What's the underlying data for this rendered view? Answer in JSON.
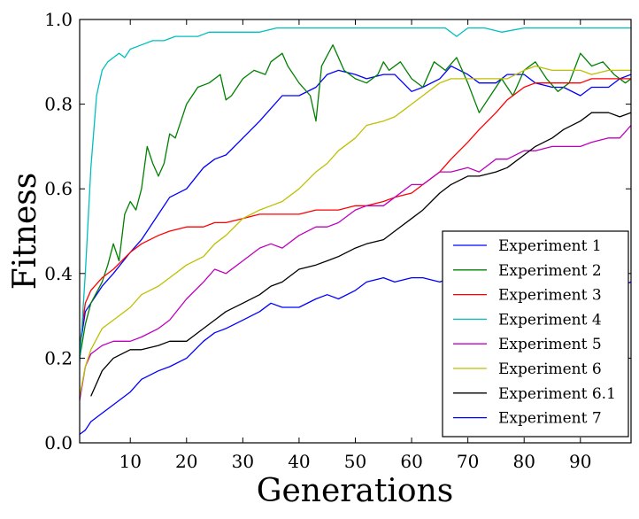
{
  "chart_data": {
    "type": "line",
    "xlabel": "Generations",
    "ylabel": "Fitness",
    "xlim": [
      1,
      99
    ],
    "ylim": [
      0.0,
      1.0
    ],
    "xticks": [
      10,
      20,
      30,
      40,
      50,
      60,
      70,
      80,
      90
    ],
    "yticks": [
      0.0,
      0.2,
      0.4,
      0.6,
      0.8,
      1.0
    ],
    "xtick_labels": [
      "10",
      "20",
      "30",
      "40",
      "50",
      "60",
      "70",
      "80",
      "90"
    ],
    "ytick_labels": [
      "0.0",
      "0.2",
      "0.4",
      "0.6",
      "0.8",
      "1.0"
    ],
    "legend_position": "lower-right",
    "grid": false,
    "series": [
      {
        "name": "Experiment 1",
        "color": "#0000ff",
        "x": [
          1,
          2,
          3,
          5,
          7,
          10,
          12,
          15,
          17,
          20,
          23,
          25,
          27,
          30,
          33,
          35,
          37,
          40,
          43,
          45,
          47,
          50,
          52,
          55,
          57,
          60,
          62,
          65,
          67,
          70,
          72,
          75,
          77,
          80,
          82,
          85,
          87,
          90,
          92,
          95,
          97,
          99
        ],
        "y": [
          0.22,
          0.31,
          0.33,
          0.37,
          0.4,
          0.45,
          0.48,
          0.54,
          0.58,
          0.6,
          0.65,
          0.67,
          0.68,
          0.72,
          0.76,
          0.79,
          0.82,
          0.82,
          0.84,
          0.87,
          0.88,
          0.87,
          0.86,
          0.87,
          0.87,
          0.83,
          0.84,
          0.86,
          0.89,
          0.87,
          0.85,
          0.85,
          0.87,
          0.87,
          0.85,
          0.84,
          0.84,
          0.82,
          0.84,
          0.84,
          0.86,
          0.87
        ]
      },
      {
        "name": "Experiment 2",
        "color": "#008000",
        "x": [
          1,
          2,
          3,
          5,
          6,
          7,
          8,
          9,
          10,
          11,
          12,
          13,
          14,
          15,
          16,
          17,
          18,
          20,
          22,
          24,
          26,
          27,
          28,
          30,
          32,
          34,
          35,
          37,
          38,
          40,
          42,
          43,
          44,
          46,
          48,
          50,
          52,
          54,
          55,
          56,
          58,
          60,
          62,
          64,
          66,
          68,
          70,
          72,
          74,
          76,
          78,
          80,
          82,
          84,
          86,
          88,
          90,
          92,
          94,
          96,
          98,
          99
        ],
        "y": [
          0.2,
          0.28,
          0.33,
          0.38,
          0.42,
          0.47,
          0.43,
          0.54,
          0.57,
          0.55,
          0.6,
          0.7,
          0.66,
          0.63,
          0.66,
          0.73,
          0.72,
          0.8,
          0.84,
          0.85,
          0.87,
          0.81,
          0.82,
          0.86,
          0.88,
          0.87,
          0.9,
          0.92,
          0.89,
          0.85,
          0.82,
          0.76,
          0.89,
          0.94,
          0.88,
          0.86,
          0.85,
          0.87,
          0.9,
          0.88,
          0.9,
          0.86,
          0.84,
          0.9,
          0.88,
          0.91,
          0.85,
          0.78,
          0.82,
          0.86,
          0.82,
          0.88,
          0.9,
          0.86,
          0.83,
          0.85,
          0.92,
          0.89,
          0.9,
          0.87,
          0.85,
          0.86
        ]
      },
      {
        "name": "Experiment 3",
        "color": "#ff0000",
        "x": [
          1,
          2,
          3,
          5,
          7,
          10,
          12,
          15,
          17,
          20,
          23,
          25,
          27,
          30,
          33,
          35,
          37,
          40,
          43,
          45,
          47,
          50,
          52,
          55,
          57,
          60,
          62,
          65,
          67,
          70,
          72,
          75,
          77,
          80,
          82,
          85,
          87,
          90,
          92,
          95,
          97,
          99
        ],
        "y": [
          0.23,
          0.33,
          0.36,
          0.39,
          0.41,
          0.45,
          0.47,
          0.49,
          0.5,
          0.51,
          0.51,
          0.52,
          0.52,
          0.53,
          0.54,
          0.54,
          0.54,
          0.54,
          0.55,
          0.55,
          0.55,
          0.56,
          0.56,
          0.57,
          0.58,
          0.59,
          0.61,
          0.64,
          0.67,
          0.71,
          0.74,
          0.78,
          0.81,
          0.84,
          0.85,
          0.85,
          0.85,
          0.85,
          0.86,
          0.86,
          0.86,
          0.86
        ]
      },
      {
        "name": "Experiment 4",
        "color": "#00bfbf",
        "x": [
          1,
          2,
          3,
          4,
          5,
          6,
          7,
          8,
          9,
          10,
          12,
          14,
          16,
          18,
          20,
          22,
          24,
          26,
          28,
          30,
          33,
          36,
          40,
          43,
          46,
          50,
          53,
          56,
          60,
          63,
          66,
          68,
          70,
          73,
          76,
          80,
          83,
          86,
          90,
          93,
          96,
          99
        ],
        "y": [
          0.19,
          0.4,
          0.65,
          0.82,
          0.88,
          0.9,
          0.91,
          0.92,
          0.91,
          0.93,
          0.94,
          0.95,
          0.95,
          0.96,
          0.96,
          0.96,
          0.97,
          0.97,
          0.97,
          0.97,
          0.97,
          0.98,
          0.98,
          0.98,
          0.98,
          0.98,
          0.98,
          0.98,
          0.98,
          0.98,
          0.98,
          0.96,
          0.98,
          0.98,
          0.97,
          0.98,
          0.98,
          0.98,
          0.98,
          0.98,
          0.98,
          0.98
        ]
      },
      {
        "name": "Experiment 5",
        "color": "#bf00bf",
        "x": [
          1,
          2,
          3,
          5,
          7,
          10,
          12,
          15,
          17,
          20,
          23,
          25,
          27,
          30,
          33,
          35,
          37,
          40,
          43,
          45,
          47,
          50,
          52,
          55,
          57,
          60,
          62,
          65,
          67,
          70,
          72,
          75,
          77,
          80,
          82,
          85,
          87,
          90,
          92,
          95,
          97,
          99
        ],
        "y": [
          0.1,
          0.18,
          0.21,
          0.23,
          0.24,
          0.24,
          0.25,
          0.27,
          0.29,
          0.34,
          0.38,
          0.41,
          0.4,
          0.43,
          0.46,
          0.47,
          0.46,
          0.49,
          0.51,
          0.51,
          0.52,
          0.55,
          0.56,
          0.56,
          0.58,
          0.61,
          0.61,
          0.64,
          0.64,
          0.65,
          0.64,
          0.67,
          0.67,
          0.69,
          0.69,
          0.7,
          0.7,
          0.7,
          0.71,
          0.72,
          0.72,
          0.75
        ]
      },
      {
        "name": "Experiment 6",
        "color": "#bfbf00",
        "x": [
          1,
          2,
          3,
          5,
          7,
          10,
          12,
          15,
          17,
          20,
          23,
          25,
          27,
          30,
          33,
          35,
          37,
          40,
          43,
          45,
          47,
          50,
          52,
          55,
          57,
          60,
          62,
          65,
          67,
          70,
          72,
          75,
          77,
          80,
          82,
          85,
          87,
          90,
          92,
          95,
          97,
          99
        ],
        "y": [
          0.11,
          0.18,
          0.22,
          0.27,
          0.29,
          0.32,
          0.35,
          0.37,
          0.39,
          0.42,
          0.44,
          0.47,
          0.49,
          0.53,
          0.55,
          0.56,
          0.57,
          0.6,
          0.64,
          0.66,
          0.69,
          0.72,
          0.75,
          0.76,
          0.77,
          0.8,
          0.82,
          0.85,
          0.86,
          0.86,
          0.86,
          0.86,
          0.86,
          0.88,
          0.89,
          0.88,
          0.88,
          0.88,
          0.87,
          0.88,
          0.88,
          0.88
        ]
      },
      {
        "name": "Experiment 6.1",
        "color": "#000000",
        "x": [
          3,
          5,
          7,
          10,
          12,
          15,
          17,
          20,
          23,
          25,
          27,
          30,
          33,
          35,
          37,
          40,
          43,
          45,
          47,
          50,
          52,
          55,
          57,
          60,
          62,
          65,
          67,
          70,
          72,
          75,
          77,
          80,
          82,
          85,
          87,
          90,
          92,
          95,
          97,
          99
        ],
        "y": [
          0.11,
          0.17,
          0.2,
          0.22,
          0.22,
          0.23,
          0.24,
          0.24,
          0.27,
          0.29,
          0.31,
          0.33,
          0.35,
          0.37,
          0.38,
          0.41,
          0.42,
          0.43,
          0.44,
          0.46,
          0.47,
          0.48,
          0.5,
          0.53,
          0.55,
          0.59,
          0.61,
          0.63,
          0.63,
          0.64,
          0.65,
          0.68,
          0.7,
          0.72,
          0.74,
          0.76,
          0.78,
          0.78,
          0.77,
          0.78
        ]
      },
      {
        "name": "Experiment 7",
        "color": "#0000ff",
        "x": [
          1,
          2,
          3,
          5,
          7,
          10,
          12,
          15,
          17,
          20,
          23,
          25,
          27,
          30,
          33,
          35,
          37,
          40,
          43,
          45,
          47,
          50,
          52,
          55,
          57,
          60,
          62,
          65,
          67,
          70,
          72,
          75,
          77,
          80,
          82,
          85,
          87,
          90,
          92,
          95,
          97,
          99
        ],
        "y": [
          0.02,
          0.03,
          0.05,
          0.07,
          0.09,
          0.12,
          0.15,
          0.17,
          0.18,
          0.2,
          0.24,
          0.26,
          0.27,
          0.29,
          0.31,
          0.33,
          0.32,
          0.32,
          0.34,
          0.35,
          0.34,
          0.36,
          0.38,
          0.39,
          0.38,
          0.39,
          0.39,
          0.38,
          0.39,
          0.38,
          0.38,
          0.38,
          0.38,
          0.38,
          0.37,
          0.38,
          0.37,
          0.37,
          0.37,
          0.38,
          0.37,
          0.38
        ]
      }
    ]
  }
}
